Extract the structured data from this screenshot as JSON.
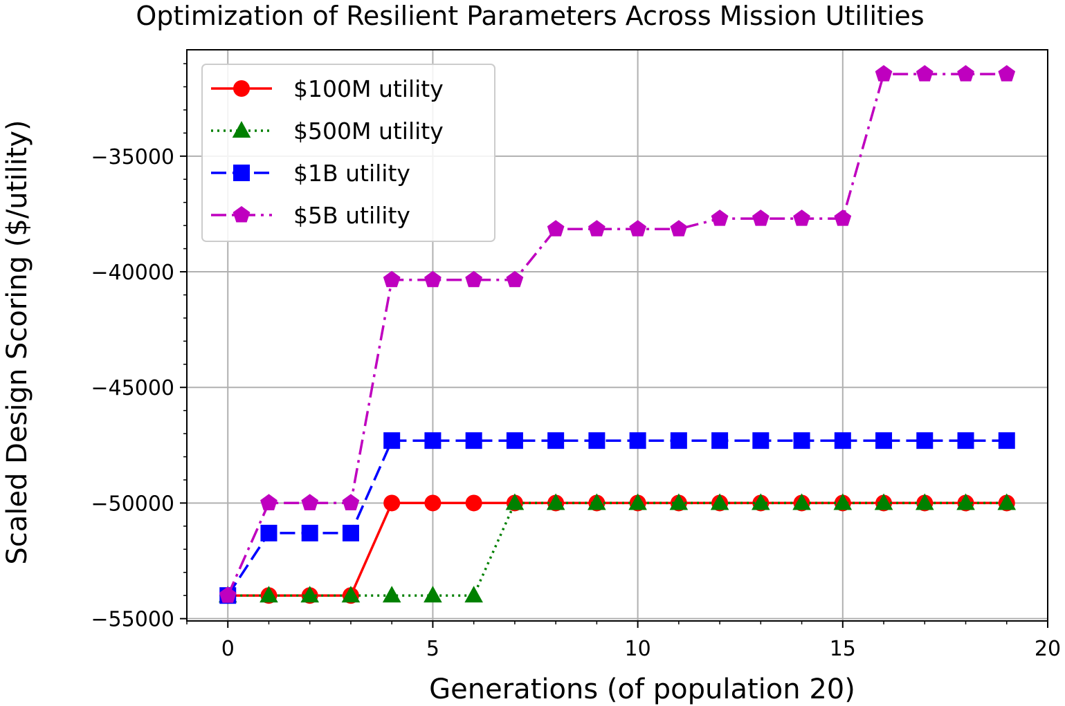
{
  "chart_data": {
    "type": "line",
    "title": "Optimization of Resilient Parameters Across Mission Utilities",
    "xlabel": "Generations (of population 20)",
    "ylabel": "Scaled Design Scoring ($/utility)",
    "xlim": [
      -1,
      20
    ],
    "ylim": [
      -55100,
      -30400
    ],
    "xticks": [
      0,
      5,
      10,
      15,
      20
    ],
    "xtick_labels": [
      "0",
      "5",
      "10",
      "15",
      "20"
    ],
    "yticks": [
      -55000,
      -50000,
      -45000,
      -40000,
      -35000
    ],
    "ytick_labels": [
      "−55000",
      "−50000",
      "−45000",
      "−40000",
      "−35000"
    ],
    "grid": true,
    "legend_position": "upper-left",
    "x": [
      0,
      1,
      2,
      3,
      4,
      5,
      6,
      7,
      8,
      9,
      10,
      11,
      12,
      13,
      14,
      15,
      16,
      17,
      18,
      19
    ],
    "series": [
      {
        "name": "$100M utility",
        "color": "#ff0000",
        "linestyle": "solid",
        "marker": "circle",
        "values": [
          -54000,
          -54000,
          -54000,
          -54000,
          -50000,
          -50000,
          -50000,
          -50000,
          -50000,
          -50000,
          -50000,
          -50000,
          -50000,
          -50000,
          -50000,
          -50000,
          -50000,
          -50000,
          -50000,
          -50000
        ]
      },
      {
        "name": "$500M utility",
        "color": "#008000",
        "linestyle": "dotted",
        "marker": "triangle",
        "values": [
          -54000,
          -54000,
          -54000,
          -54000,
          -54000,
          -54000,
          -54000,
          -50000,
          -50000,
          -50000,
          -50000,
          -50000,
          -50000,
          -50000,
          -50000,
          -50000,
          -50000,
          -50000,
          -50000,
          -50000
        ]
      },
      {
        "name": "$1B utility",
        "color": "#0000ff",
        "linestyle": "dashed",
        "marker": "square",
        "values": [
          -54000,
          -51300,
          -51300,
          -51300,
          -47300,
          -47300,
          -47300,
          -47300,
          -47300,
          -47300,
          -47300,
          -47300,
          -47300,
          -47300,
          -47300,
          -47300,
          -47300,
          -47300,
          -47300,
          -47300
        ]
      },
      {
        "name": "$5B utility",
        "color": "#bf00bf",
        "linestyle": "dashdot",
        "marker": "pentagon",
        "values": [
          -54000,
          -50000,
          -50000,
          -50000,
          -40350,
          -40350,
          -40350,
          -40350,
          -38150,
          -38150,
          -38150,
          -38150,
          -37700,
          -37700,
          -37700,
          -37700,
          -31450,
          -31450,
          -31450,
          -31450
        ]
      }
    ]
  }
}
